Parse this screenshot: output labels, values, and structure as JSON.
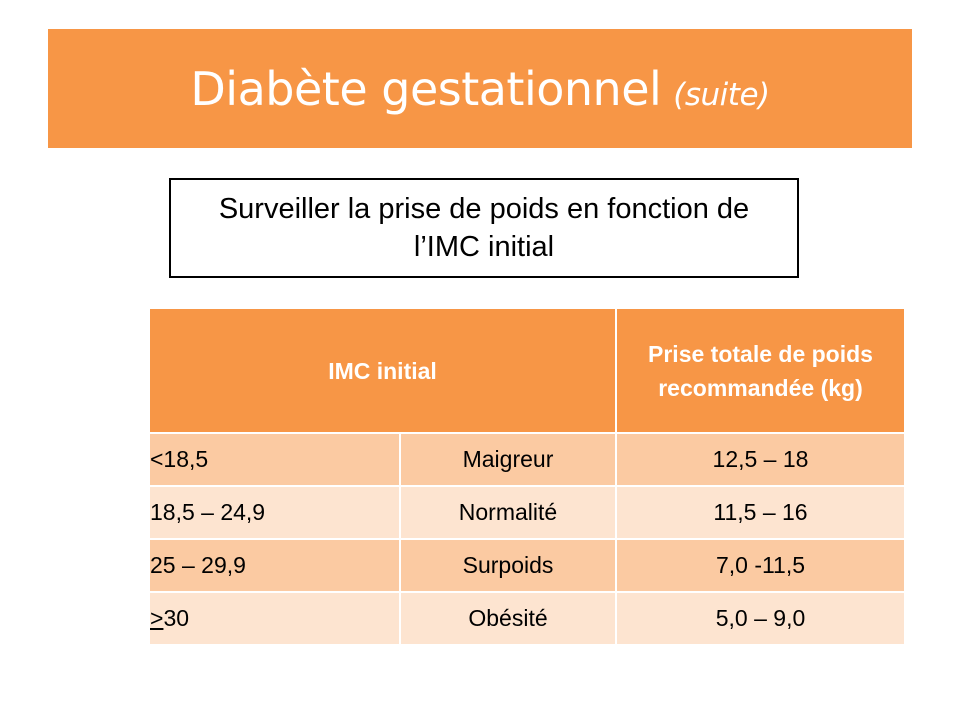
{
  "slide": {
    "title": "Diabète gestationnel",
    "title_suffix": "(suite)",
    "callout": "Surveiller  la prise de poids en fonction de l’IMC initial"
  },
  "table": {
    "headers": {
      "imc": "IMC initial",
      "gain": "Prise totale de poids recommandée (kg)"
    },
    "rows": [
      {
        "imc_prefix": "",
        "imc": "<18,5",
        "category": "Maigreur",
        "gain": "12,5 – 18"
      },
      {
        "imc_prefix": "",
        "imc": "18,5 – 24,9",
        "category": "Normalité",
        "gain": "11,5 – 16"
      },
      {
        "imc_prefix": "",
        "imc": "25 – 29,9",
        "category": "Surpoids",
        "gain": "7,0 -11,5"
      },
      {
        "imc_prefix": ">",
        "imc": "30",
        "category": "Obésité",
        "gain": "5,0 – 9,0"
      }
    ]
  },
  "colors": {
    "accent": "#f79646",
    "row_dark": "#fbcaa2",
    "row_light": "#fde4d0"
  }
}
